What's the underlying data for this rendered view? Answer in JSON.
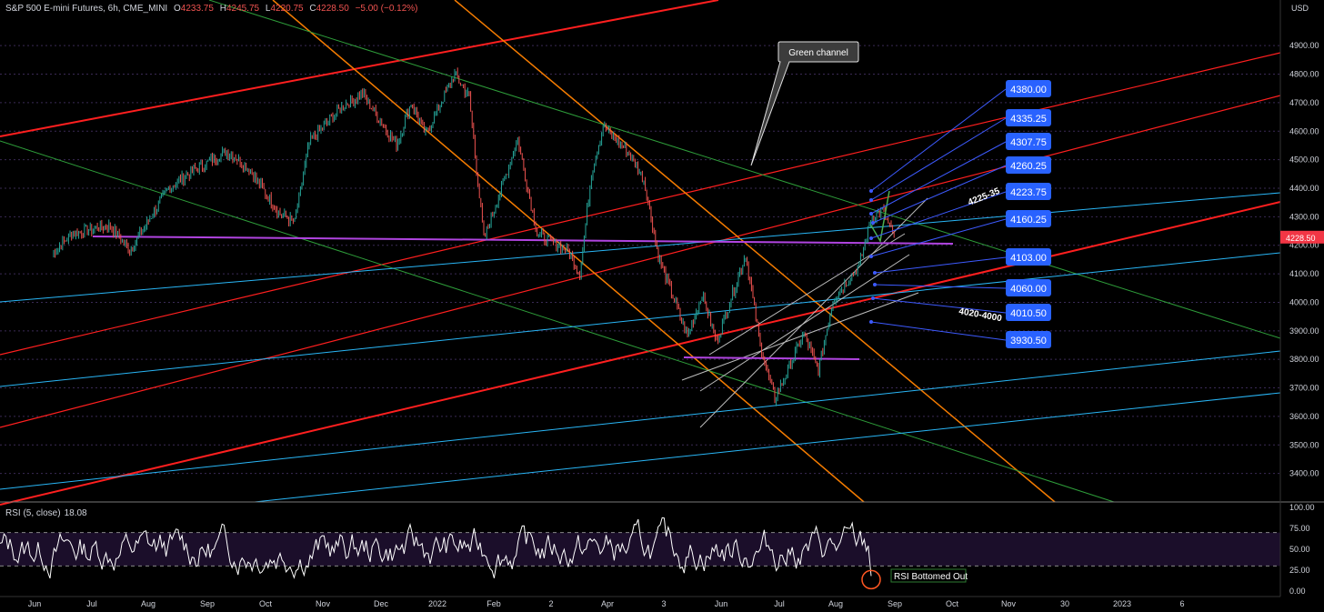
{
  "header": {
    "symbol": "S&P 500 E-mini Futures, 6h, CME_MINI",
    "open_label": "O",
    "open": "4233.75",
    "high_label": "H",
    "high": "4245.75",
    "low_label": "L",
    "low": "4220.75",
    "close_label": "C",
    "close": "4228.50",
    "change": "−5.00 (−0.12%)"
  },
  "rsi": {
    "label": "RSI (5, close)",
    "value": "18.08",
    "bottom_note": "RSI Bottomed Out"
  },
  "annotations": {
    "callout": "Green channel",
    "zone_upper": "4225-35",
    "zone_lower": "4020-4000"
  },
  "colors": {
    "up": "#26a69a",
    "down": "#ef5350",
    "red_line": "#ff1f1f",
    "orange_line": "#f57c00",
    "green_line": "#2e9d3a",
    "blue_line": "#29b6f6",
    "purple_line": "#b044e0",
    "price_box": "#2962ff",
    "last_price": "#f23645",
    "rsi_line": "#ffffff"
  },
  "chart_data": {
    "type": "line",
    "title": "S&P 500 E-mini Futures, 6h, CME_MINI",
    "price_axis": {
      "unit": "USD",
      "ticks": [
        "4900.00",
        "4800.00",
        "4700.00",
        "4600.00",
        "4500.00",
        "4400.00",
        "4300.00",
        "4200.00",
        "4100.00",
        "4000.00",
        "3900.00",
        "3800.00",
        "3700.00",
        "3600.00",
        "3500.00",
        "3400.00"
      ],
      "range": [
        3300,
        5060
      ],
      "last_price": "4228.50"
    },
    "rsi_axis": {
      "ticks": [
        "100.00",
        "75.00",
        "50.00",
        "25.00",
        "0.00"
      ],
      "range": [
        0,
        100
      ],
      "bands": [
        30,
        70
      ]
    },
    "time_axis": {
      "labels": [
        "Jun",
        "Jul",
        "Aug",
        "Sep",
        "Oct",
        "Nov",
        "Dec",
        "2022",
        "Feb",
        "2",
        "Apr",
        "3",
        "Jun",
        "Jul",
        "Aug",
        "Sep",
        "Oct",
        "Nov",
        "30",
        "2023",
        "6"
      ]
    },
    "price_path": [
      [
        "Jun 2021",
        4170
      ],
      [
        "Jun 2021",
        4240
      ],
      [
        "Jul 2021",
        4270
      ],
      [
        "Jul 2021",
        4180
      ],
      [
        "Aug 2021",
        4400
      ],
      [
        "Aug 2021",
        4450
      ],
      [
        "Sep 2021",
        4530
      ],
      [
        "Sep 2021",
        4480
      ],
      [
        "Oct 2021",
        4310
      ],
      [
        "Oct 2021",
        4280
      ],
      [
        "Oct 2021",
        4560
      ],
      [
        "Nov 2021",
        4690
      ],
      [
        "Nov 2021",
        4730
      ],
      [
        "Dec 2021",
        4550
      ],
      [
        "Dec 2021",
        4700
      ],
      [
        "Dec 2021",
        4590
      ],
      [
        "Jan 2022",
        4800
      ],
      [
        "Jan 2022",
        4720
      ],
      [
        "Jan 2022",
        4220
      ],
      [
        "Feb 2022",
        4570
      ],
      [
        "Feb 2022",
        4240
      ],
      [
        "Mar 2022",
        4180
      ],
      [
        "Mar 2022",
        4100
      ],
      [
        "Mar 2022",
        4450
      ],
      [
        "Mar 2022",
        4620
      ],
      [
        "Apr 2022",
        4520
      ],
      [
        "Apr 2022",
        4430
      ],
      [
        "Apr 2022",
        4160
      ],
      [
        "May 2022",
        3880
      ],
      [
        "May 2022",
        4030
      ],
      [
        "May 2022",
        3860
      ],
      [
        "Jun 2022",
        4170
      ],
      [
        "Jun 2022",
        3850
      ],
      [
        "Jun 2022",
        3660
      ],
      [
        "Jul 2022",
        3890
      ],
      [
        "Jul 2022",
        3760
      ],
      [
        "Jul 2022",
        4010
      ],
      [
        "Aug 2022",
        4130
      ],
      [
        "Aug 2022",
        4290
      ],
      [
        "Aug 2022",
        4325
      ],
      [
        "Aug 2022",
        4228.5
      ]
    ],
    "target_levels": [
      "4380.00",
      "4335.25",
      "4307.75",
      "4260.25",
      "4223.75",
      "4160.25",
      "4103.00",
      "4060.00",
      "4010.50",
      "3930.50"
    ],
    "series": [
      {
        "name": "RSI (5, close)",
        "last": 18.08
      }
    ]
  }
}
